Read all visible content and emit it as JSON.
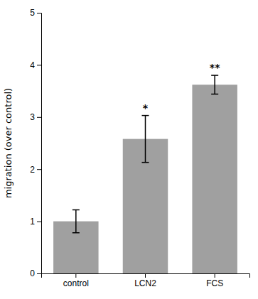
{
  "chart_data": {
    "type": "bar",
    "categories": [
      "control",
      "LCN2",
      "FCS"
    ],
    "values": [
      1.0,
      2.58,
      3.62
    ],
    "errors": [
      0.22,
      0.45,
      0.18
    ],
    "color": "#a0a0a0",
    "ylabel": "migration (over control)",
    "ylim": [
      0,
      5
    ],
    "yticks": [
      0,
      1,
      2,
      3,
      4,
      5
    ],
    "significance_labels": [
      null,
      "*",
      "**"
    ],
    "grid": false
  }
}
